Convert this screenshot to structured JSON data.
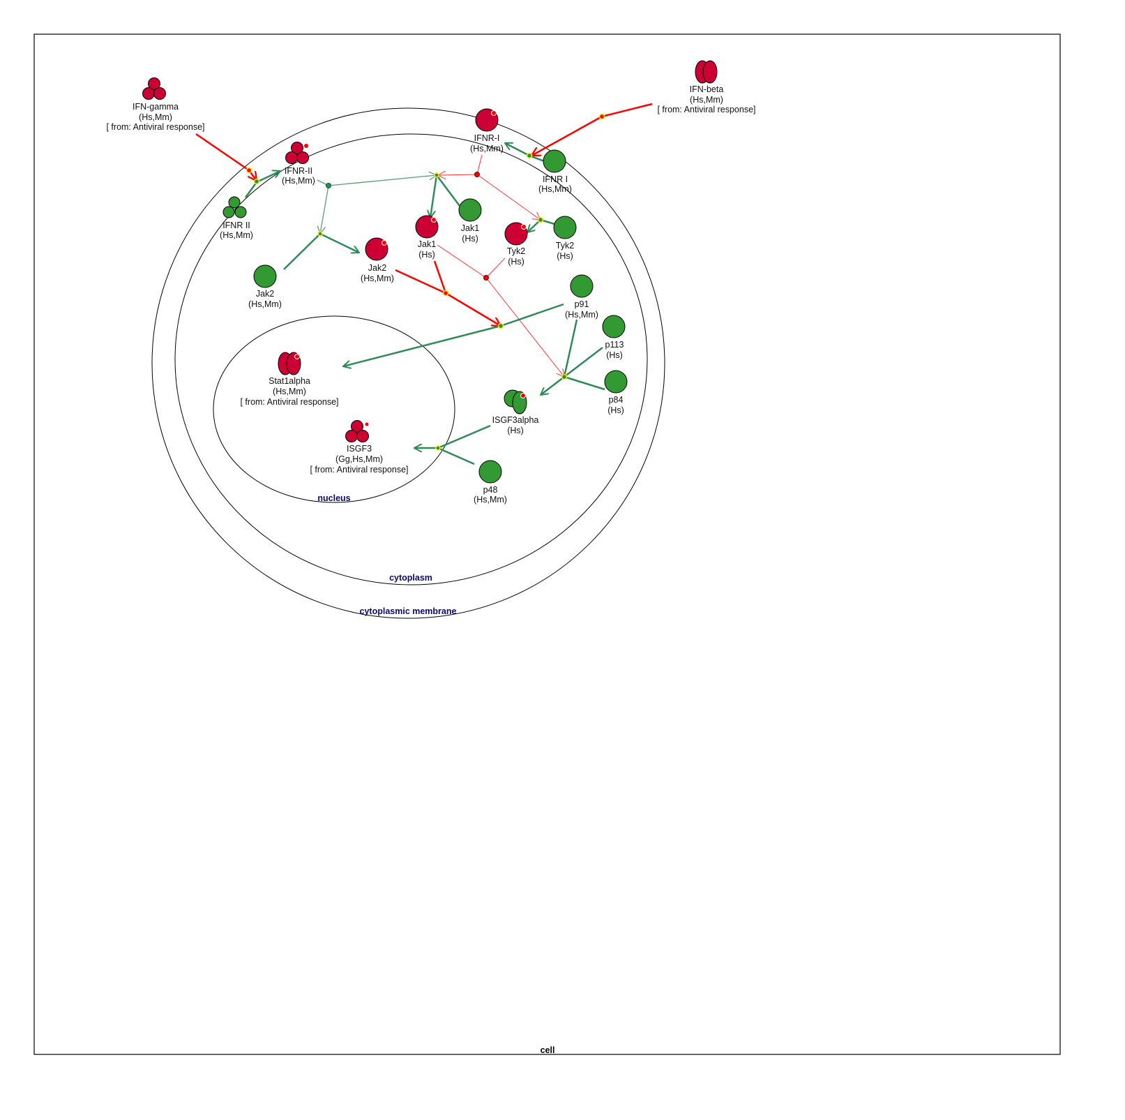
{
  "compartments": {
    "cell": "cell",
    "membrane": "cytoplasmic membrane",
    "cytoplasm": "cytoplasm",
    "nucleus": "nucleus"
  },
  "colors": {
    "active": "#cc0033",
    "inactive": "#339933",
    "activation_edge": "#ff0000",
    "transition_edge": "#2e8b57",
    "phosphorylation": "#ff0000"
  },
  "nodes": {
    "ifn_gamma": {
      "lines": [
        "IFN-gamma",
        "(Hs,Mm)",
        "[ from: Antiviral response]"
      ]
    },
    "ifn_beta": {
      "lines": [
        "IFN-beta",
        "(Hs,Mm)",
        "[ from: Antiviral response]"
      ]
    },
    "ifnr_i_active": {
      "lines": [
        "IFNR-I",
        "(Hs,Mm)"
      ]
    },
    "ifnr_i": {
      "lines": [
        "IFNR I",
        "(Hs,Mm)"
      ]
    },
    "ifnr_ii_active": {
      "lines": [
        "IFNR-II",
        "(Hs,Mm)"
      ]
    },
    "ifnr_ii": {
      "lines": [
        "IFNR II",
        "(Hs,Mm)"
      ]
    },
    "jak1_active": {
      "lines": [
        "Jak1",
        "(Hs)"
      ]
    },
    "jak1": {
      "lines": [
        "Jak1",
        "(Hs)"
      ]
    },
    "tyk2_active": {
      "lines": [
        "Tyk2",
        "(Hs)"
      ]
    },
    "tyk2": {
      "lines": [
        "Tyk2",
        "(Hs)"
      ]
    },
    "jak2": {
      "lines": [
        "Jak2",
        "(Hs,Mm)"
      ]
    },
    "jak2_active": {
      "lines": [
        "Jak2",
        "(Hs,Mm)"
      ]
    },
    "p91": {
      "lines": [
        "p91",
        "(Hs,Mm)"
      ]
    },
    "p113": {
      "lines": [
        "p113",
        "(Hs)"
      ]
    },
    "p84": {
      "lines": [
        "p84",
        "(Hs)"
      ]
    },
    "isgf3alpha": {
      "lines": [
        "ISGF3alpha",
        "(Hs)"
      ]
    },
    "p48": {
      "lines": [
        "p48",
        "(Hs,Mm)"
      ]
    },
    "stat1alpha": {
      "lines": [
        "Stat1alpha",
        "(Hs,Mm)",
        "[ from: Antiviral response]"
      ]
    },
    "isgf3": {
      "lines": [
        "ISGF3",
        "(Gg,Hs,Mm)",
        "[ from: Antiviral response]"
      ]
    }
  }
}
